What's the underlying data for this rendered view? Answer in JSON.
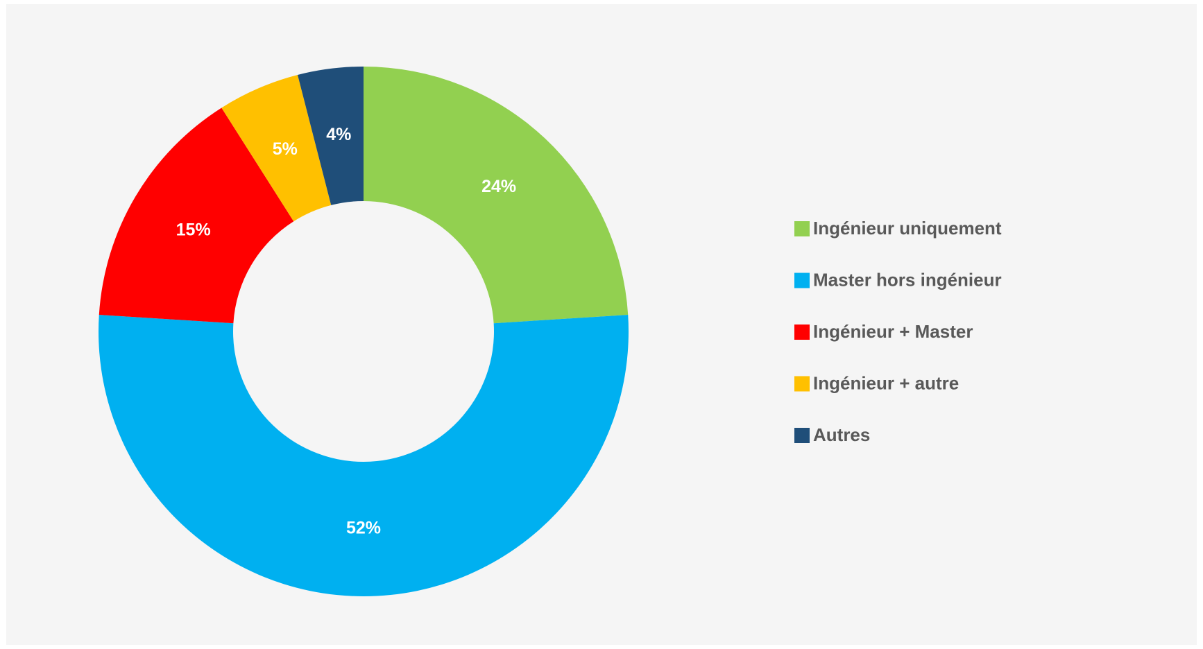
{
  "chart_data": {
    "type": "donut",
    "categories": [
      "Ingénieur uniquement",
      "Master hors ingénieur",
      "Ingénieur + Master",
      "Ingénieur + autre",
      "Autres"
    ],
    "values": [
      24,
      52,
      15,
      5,
      4
    ],
    "value_labels": [
      "24%",
      "52%",
      "15%",
      "5%",
      "4%"
    ],
    "colors": [
      "#92d050",
      "#00b0f0",
      "#ff0000",
      "#ffc000",
      "#1f4e79"
    ],
    "legend": "right"
  }
}
